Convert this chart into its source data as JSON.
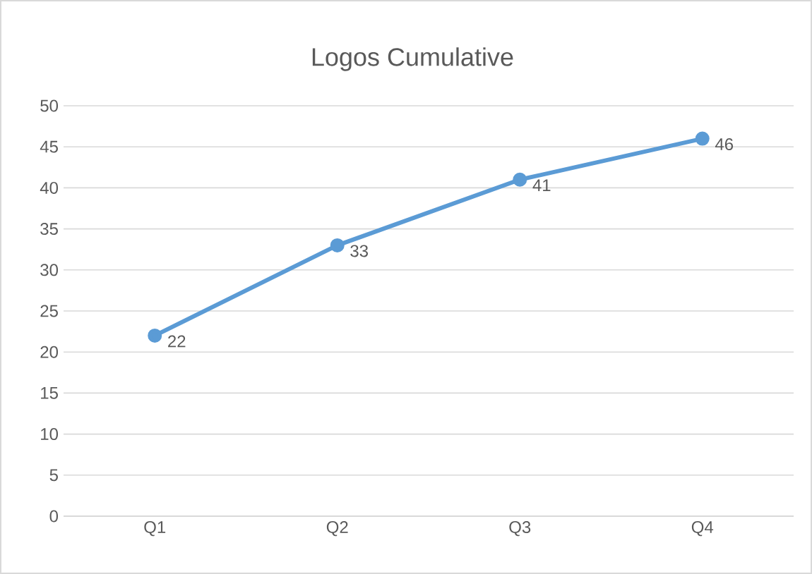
{
  "chart_data": {
    "type": "line",
    "title": "Logos Cumulative",
    "categories": [
      "Q1",
      "Q2",
      "Q3",
      "Q4"
    ],
    "series": [
      {
        "color": "#5b9bd5",
        "values": [
          22,
          33,
          41,
          46
        ]
      }
    ],
    "ylim": [
      0,
      50
    ],
    "yticks": [
      0,
      5,
      10,
      15,
      20,
      25,
      30,
      35,
      40,
      45,
      50
    ],
    "grid": "y",
    "marker": "circle",
    "line_style": "solid",
    "data_labels": true
  }
}
